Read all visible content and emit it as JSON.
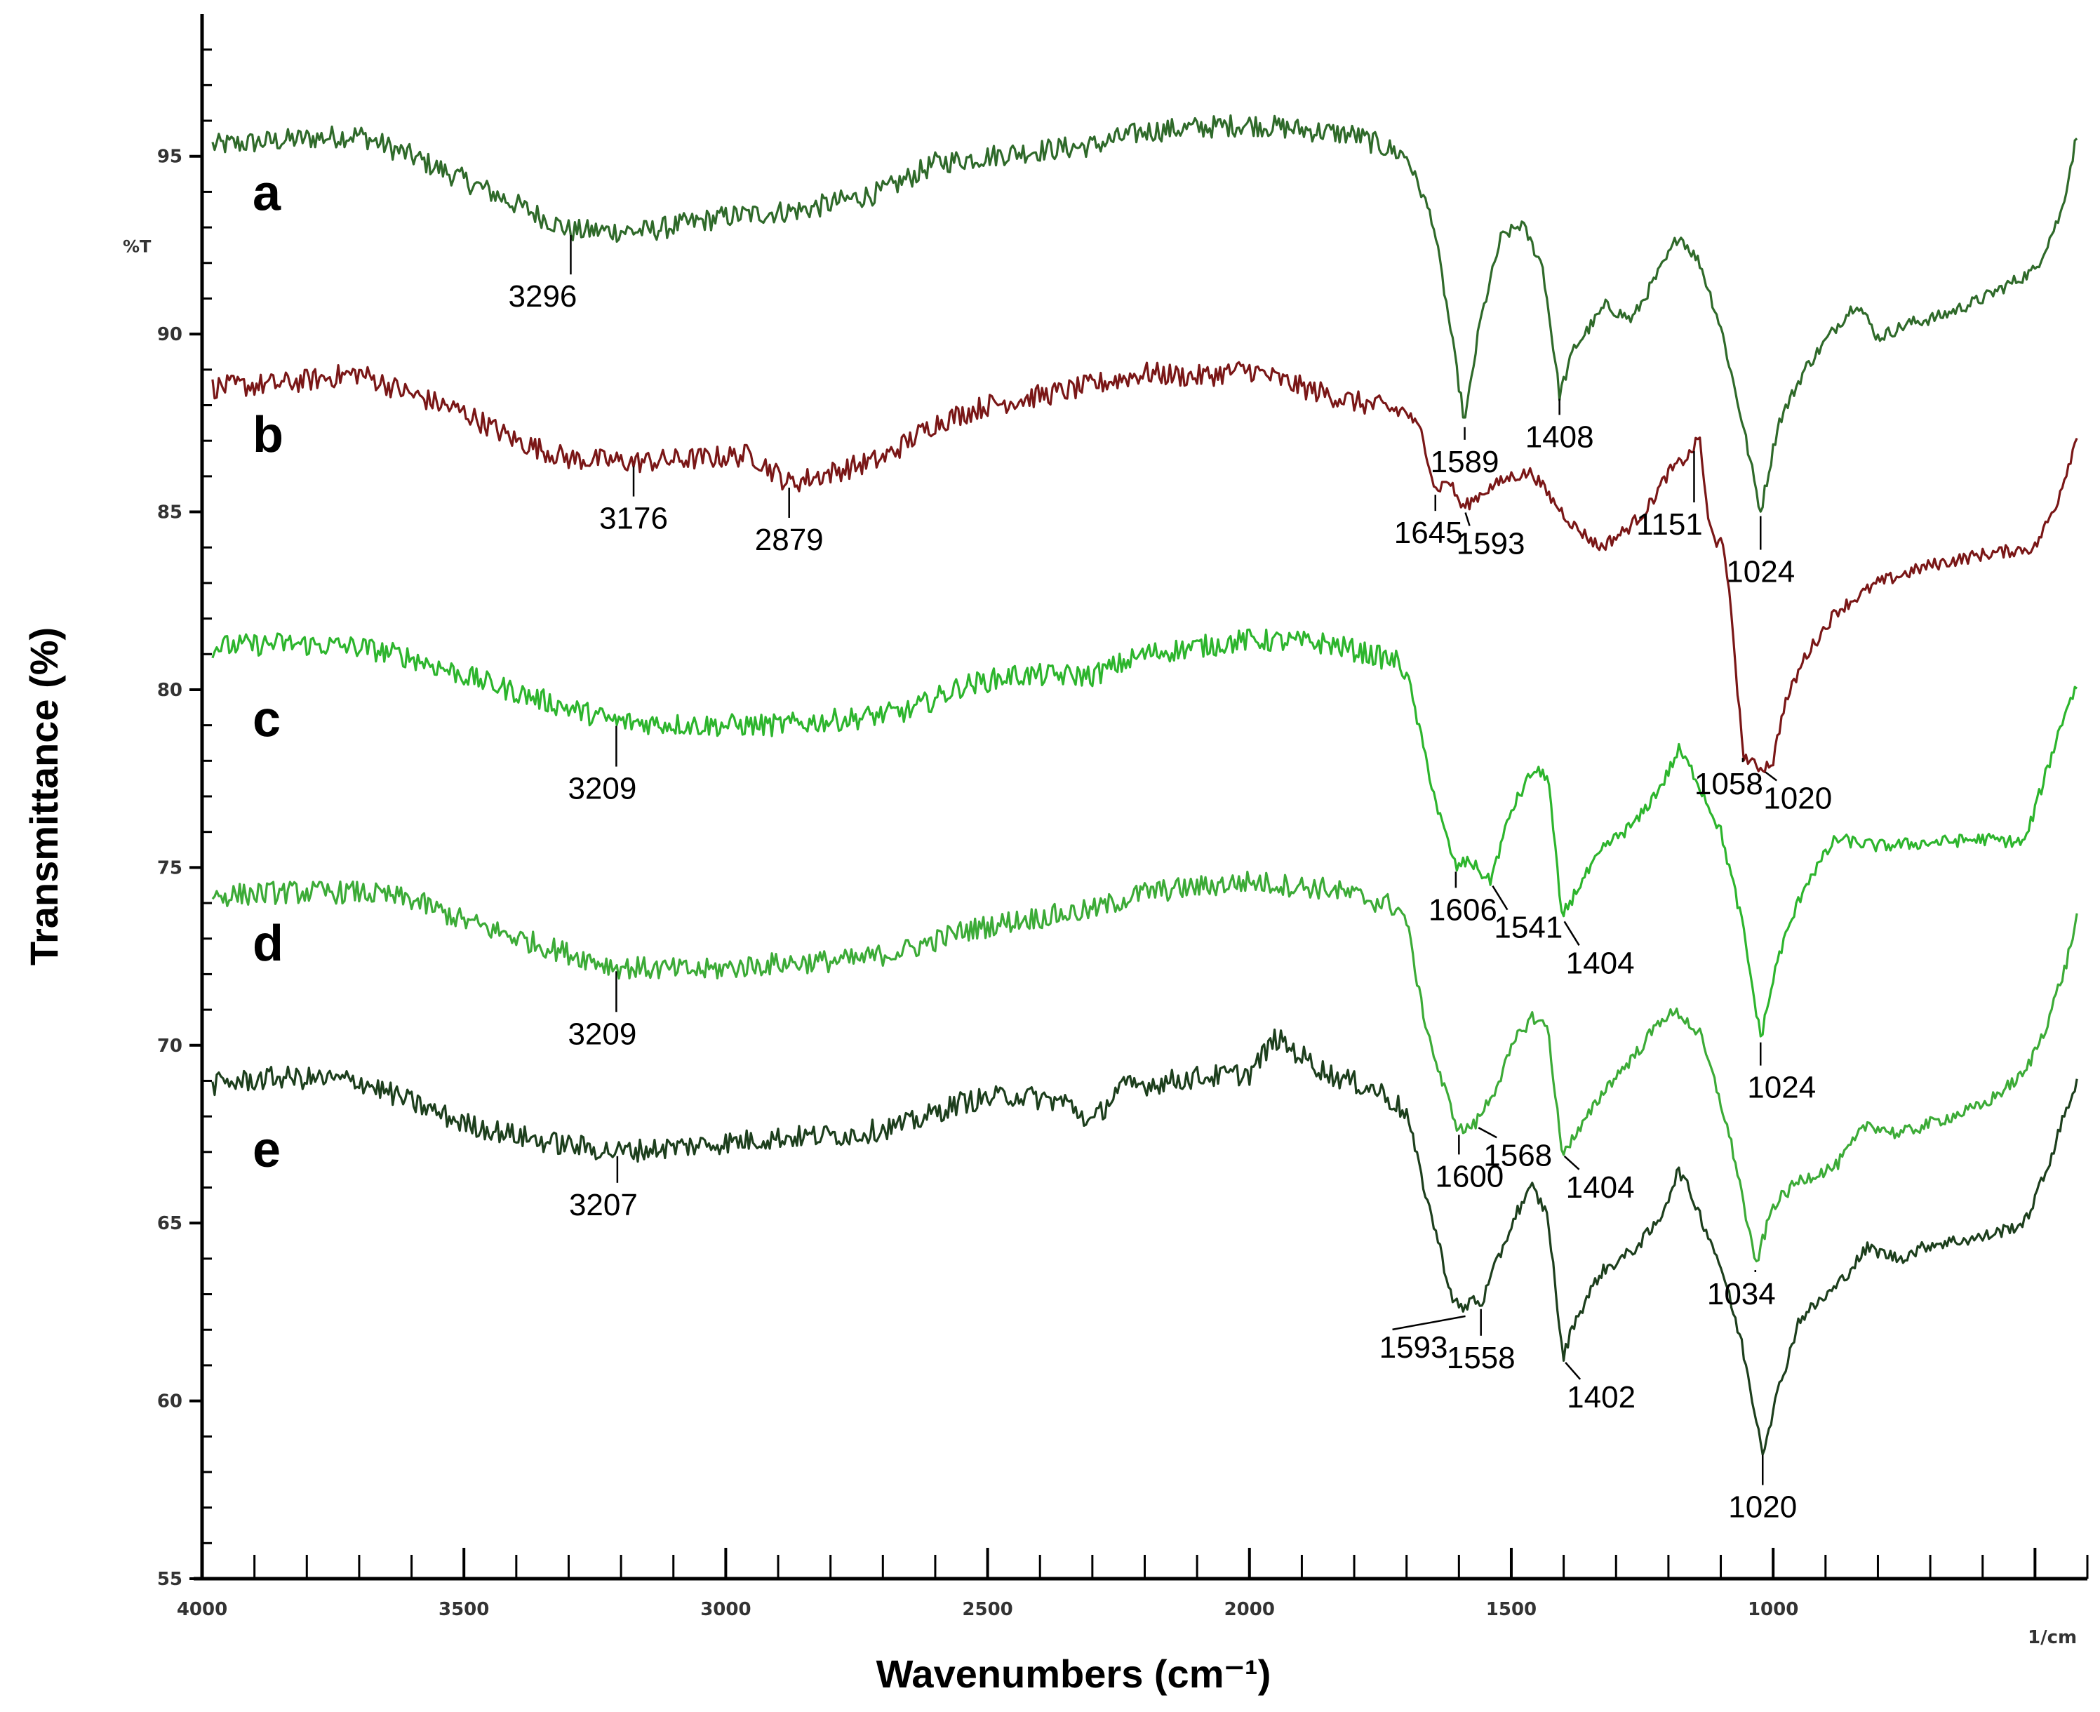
{
  "chart_data": {
    "type": "line",
    "xlabel": "Wavenumbers (cm⁻¹)",
    "ylabel": "Transmittance (%)",
    "x_unit_label": "1/cm",
    "y_unit_label": "%T",
    "xlim": [
      4000,
      400
    ],
    "ylim": [
      55,
      99
    ],
    "x_ticks": [
      4000,
      3500,
      3000,
      2500,
      2000,
      1500,
      1000
    ],
    "x_tick_labels": [
      "4000",
      "3500",
      "3000",
      "2500",
      "2000",
      "1500",
      "1000"
    ],
    "y_ticks": [
      55,
      60,
      65,
      70,
      75,
      80,
      85,
      90,
      95
    ],
    "y_tick_labels": [
      "55",
      "60",
      "65",
      "70",
      "75",
      "80",
      "85",
      "90",
      "95"
    ],
    "grid": false,
    "series": [
      {
        "name": "a",
        "color": "#2f6a2a",
        "points": [
          [
            3980,
            95.3
          ],
          [
            3800,
            95.5
          ],
          [
            3700,
            95.6
          ],
          [
            3600,
            95.0
          ],
          [
            3450,
            94.0
          ],
          [
            3296,
            92.9
          ],
          [
            3150,
            92.9
          ],
          [
            3000,
            93.3
          ],
          [
            2850,
            93.5
          ],
          [
            2700,
            94.0
          ],
          [
            2600,
            94.8
          ],
          [
            2450,
            95.1
          ],
          [
            2300,
            95.3
          ],
          [
            2200,
            95.7
          ],
          [
            2000,
            95.9
          ],
          [
            1800,
            95.6
          ],
          [
            1700,
            95.0
          ],
          [
            1650,
            93.2
          ],
          [
            1620,
            90.5
          ],
          [
            1589,
            87.5
          ],
          [
            1560,
            90.3
          ],
          [
            1520,
            92.7
          ],
          [
            1480,
            93.1
          ],
          [
            1440,
            91.9
          ],
          [
            1408,
            88.3
          ],
          [
            1380,
            89.6
          ],
          [
            1320,
            90.8
          ],
          [
            1270,
            90.4
          ],
          [
            1200,
            92.2
          ],
          [
            1180,
            92.8
          ],
          [
            1140,
            92.0
          ],
          [
            1100,
            90.2
          ],
          [
            1060,
            87.6
          ],
          [
            1024,
            85.0
          ],
          [
            990,
            87.5
          ],
          [
            940,
            89.0
          ],
          [
            880,
            90.2
          ],
          [
            840,
            90.9
          ],
          [
            800,
            89.9
          ],
          [
            740,
            90.3
          ],
          [
            680,
            90.5
          ],
          [
            600,
            91.0
          ],
          [
            500,
            91.8
          ],
          [
            450,
            93.4
          ],
          [
            420,
            95.6
          ]
        ],
        "peaks": [
          {
            "x": 3296,
            "label": "3296"
          },
          {
            "x": 1589,
            "label": "1589"
          },
          {
            "x": 1408,
            "label": "1408"
          },
          {
            "x": 1024,
            "label": "1024"
          }
        ]
      },
      {
        "name": "b",
        "color": "#7a1717",
        "points": [
          [
            3980,
            88.5
          ],
          [
            3850,
            88.6
          ],
          [
            3700,
            88.9
          ],
          [
            3600,
            88.3
          ],
          [
            3500,
            87.8
          ],
          [
            3400,
            87.0
          ],
          [
            3300,
            86.5
          ],
          [
            3176,
            86.4
          ],
          [
            3050,
            86.5
          ],
          [
            2950,
            86.6
          ],
          [
            2879,
            85.8
          ],
          [
            2800,
            86.1
          ],
          [
            2700,
            86.5
          ],
          [
            2600,
            87.5
          ],
          [
            2500,
            88.0
          ],
          [
            2350,
            88.4
          ],
          [
            2200,
            88.9
          ],
          [
            2100,
            88.8
          ],
          [
            2000,
            89.0
          ],
          [
            1900,
            88.5
          ],
          [
            1800,
            88.1
          ],
          [
            1700,
            87.8
          ],
          [
            1670,
            87.2
          ],
          [
            1645,
            85.6
          ],
          [
            1620,
            85.9
          ],
          [
            1593,
            85.1
          ],
          [
            1550,
            85.6
          ],
          [
            1500,
            86.0
          ],
          [
            1460,
            86.1
          ],
          [
            1420,
            85.3
          ],
          [
            1380,
            84.6
          ],
          [
            1330,
            84.0
          ],
          [
            1280,
            84.5
          ],
          [
            1240,
            85.1
          ],
          [
            1200,
            86.1
          ],
          [
            1160,
            86.6
          ],
          [
            1140,
            87.1
          ],
          [
            1125,
            84.8
          ],
          [
            1110,
            84.1
          ],
          [
            1100,
            84.4
          ],
          [
            1080,
            82.2
          ],
          [
            1058,
            78.2
          ],
          [
            1040,
            77.9
          ],
          [
            1020,
            77.8
          ],
          [
            1000,
            78.0
          ],
          [
            980,
            79.5
          ],
          [
            940,
            80.9
          ],
          [
            880,
            82.2
          ],
          [
            800,
            83.0
          ],
          [
            700,
            83.5
          ],
          [
            600,
            83.8
          ],
          [
            500,
            84.0
          ],
          [
            460,
            85.2
          ],
          [
            420,
            87.1
          ]
        ],
        "peaks": [
          {
            "x": 3176,
            "label": "3176"
          },
          {
            "x": 2879,
            "label": "2879"
          },
          {
            "x": 1645,
            "label": "1645"
          },
          {
            "x": 1593,
            "label": "1593"
          },
          {
            "x": 1151,
            "label": "1151"
          },
          {
            "x": 1058,
            "label": "1058"
          },
          {
            "x": 1020,
            "label": "1020"
          }
        ]
      },
      {
        "name": "c",
        "color": "#2db52d",
        "points": [
          [
            3980,
            81.2
          ],
          [
            3850,
            81.3
          ],
          [
            3700,
            81.2
          ],
          [
            3600,
            80.9
          ],
          [
            3500,
            80.4
          ],
          [
            3350,
            79.7
          ],
          [
            3209,
            79.1
          ],
          [
            3050,
            79.0
          ],
          [
            2900,
            79.0
          ],
          [
            2750,
            79.2
          ],
          [
            2650,
            79.4
          ],
          [
            2550,
            80.1
          ],
          [
            2450,
            80.4
          ],
          [
            2300,
            80.4
          ],
          [
            2200,
            81.0
          ],
          [
            2000,
            81.4
          ],
          [
            1850,
            81.3
          ],
          [
            1720,
            80.8
          ],
          [
            1700,
            80.5
          ],
          [
            1670,
            78.5
          ],
          [
            1640,
            76.6
          ],
          [
            1606,
            75.0
          ],
          [
            1580,
            75.2
          ],
          [
            1541,
            74.6
          ],
          [
            1500,
            76.6
          ],
          [
            1460,
            77.7
          ],
          [
            1430,
            77.6
          ],
          [
            1404,
            73.6
          ],
          [
            1370,
            74.5
          ],
          [
            1320,
            75.6
          ],
          [
            1260,
            76.3
          ],
          [
            1210,
            77.4
          ],
          [
            1180,
            78.3
          ],
          [
            1150,
            77.6
          ],
          [
            1100,
            76.0
          ],
          [
            1060,
            73.5
          ],
          [
            1024,
            70.2
          ],
          [
            990,
            72.5
          ],
          [
            940,
            74.5
          ],
          [
            880,
            75.8
          ],
          [
            800,
            75.6
          ],
          [
            700,
            75.7
          ],
          [
            600,
            75.8
          ],
          [
            520,
            75.7
          ],
          [
            480,
            77.6
          ],
          [
            440,
            79.5
          ],
          [
            420,
            80.1
          ]
        ],
        "peaks": [
          {
            "x": 3209,
            "label": "3209"
          },
          {
            "x": 1606,
            "label": "1606"
          },
          {
            "x": 1541,
            "label": "1541"
          },
          {
            "x": 1404,
            "label": "1404"
          },
          {
            "x": 1024,
            "label": "1024"
          }
        ]
      },
      {
        "name": "d",
        "color": "#3cab37",
        "points": [
          [
            3980,
            74.2
          ],
          [
            3850,
            74.3
          ],
          [
            3700,
            74.3
          ],
          [
            3600,
            74.1
          ],
          [
            3500,
            73.5
          ],
          [
            3350,
            72.8
          ],
          [
            3209,
            72.2
          ],
          [
            3050,
            72.1
          ],
          [
            2900,
            72.3
          ],
          [
            2750,
            72.4
          ],
          [
            2650,
            72.7
          ],
          [
            2550,
            73.2
          ],
          [
            2450,
            73.5
          ],
          [
            2300,
            73.8
          ],
          [
            2200,
            74.3
          ],
          [
            2000,
            74.6
          ],
          [
            1850,
            74.4
          ],
          [
            1720,
            73.9
          ],
          [
            1700,
            73.5
          ],
          [
            1670,
            71.0
          ],
          [
            1640,
            69.3
          ],
          [
            1600,
            67.6
          ],
          [
            1580,
            67.7
          ],
          [
            1568,
            67.8
          ],
          [
            1530,
            68.8
          ],
          [
            1490,
            70.2
          ],
          [
            1460,
            70.8
          ],
          [
            1430,
            70.5
          ],
          [
            1404,
            67.0
          ],
          [
            1370,
            67.6
          ],
          [
            1320,
            68.8
          ],
          [
            1260,
            69.8
          ],
          [
            1210,
            70.8
          ],
          [
            1180,
            70.9
          ],
          [
            1140,
            70.3
          ],
          [
            1100,
            68.4
          ],
          [
            1070,
            66.6
          ],
          [
            1034,
            63.8
          ],
          [
            1000,
            65.5
          ],
          [
            950,
            66.2
          ],
          [
            880,
            66.6
          ],
          [
            820,
            67.8
          ],
          [
            760,
            67.5
          ],
          [
            700,
            67.8
          ],
          [
            600,
            68.3
          ],
          [
            520,
            69.2
          ],
          [
            480,
            70.5
          ],
          [
            440,
            72.3
          ],
          [
            420,
            73.6
          ]
        ],
        "peaks": [
          {
            "x": 3209,
            "label": "3209"
          },
          {
            "x": 1600,
            "label": "1600"
          },
          {
            "x": 1568,
            "label": "1568"
          },
          {
            "x": 1404,
            "label": "1404"
          },
          {
            "x": 1034,
            "label": "1034"
          }
        ]
      },
      {
        "name": "e",
        "color": "#1d3f1d",
        "points": [
          [
            3980,
            68.9
          ],
          [
            3850,
            69.1
          ],
          [
            3700,
            69.0
          ],
          [
            3600,
            68.4
          ],
          [
            3500,
            67.8
          ],
          [
            3350,
            67.3
          ],
          [
            3207,
            67.0
          ],
          [
            3050,
            67.2
          ],
          [
            2900,
            67.4
          ],
          [
            2750,
            67.5
          ],
          [
            2650,
            67.8
          ],
          [
            2550,
            68.4
          ],
          [
            2450,
            68.6
          ],
          [
            2350,
            68.4
          ],
          [
            2300,
            67.8
          ],
          [
            2250,
            68.8
          ],
          [
            2100,
            69.1
          ],
          [
            2000,
            69.2
          ],
          [
            1950,
            70.2
          ],
          [
            1850,
            69.2
          ],
          [
            1750,
            68.7
          ],
          [
            1700,
            68.1
          ],
          [
            1670,
            66.2
          ],
          [
            1640,
            64.5
          ],
          [
            1615,
            63.0
          ],
          [
            1593,
            62.5
          ],
          [
            1575,
            62.9
          ],
          [
            1558,
            62.7
          ],
          [
            1530,
            63.8
          ],
          [
            1490,
            65.3
          ],
          [
            1460,
            66.0
          ],
          [
            1430,
            65.2
          ],
          [
            1402,
            61.2
          ],
          [
            1380,
            62.2
          ],
          [
            1330,
            63.6
          ],
          [
            1270,
            64.2
          ],
          [
            1220,
            65.0
          ],
          [
            1180,
            66.5
          ],
          [
            1150,
            65.6
          ],
          [
            1100,
            63.8
          ],
          [
            1060,
            61.6
          ],
          [
            1020,
            58.6
          ],
          [
            990,
            60.3
          ],
          [
            950,
            62.3
          ],
          [
            880,
            63.2
          ],
          [
            820,
            64.3
          ],
          [
            760,
            64.0
          ],
          [
            700,
            64.4
          ],
          [
            600,
            64.6
          ],
          [
            520,
            65.0
          ],
          [
            480,
            66.4
          ],
          [
            440,
            68.2
          ],
          [
            420,
            69.0
          ]
        ],
        "peaks": [
          {
            "x": 3207,
            "label": "3207"
          },
          {
            "x": 1593,
            "label": "1593"
          },
          {
            "x": 1558,
            "label": "1558"
          },
          {
            "x": 1402,
            "label": "1402"
          },
          {
            "x": 1020,
            "label": "1020"
          }
        ]
      }
    ]
  }
}
